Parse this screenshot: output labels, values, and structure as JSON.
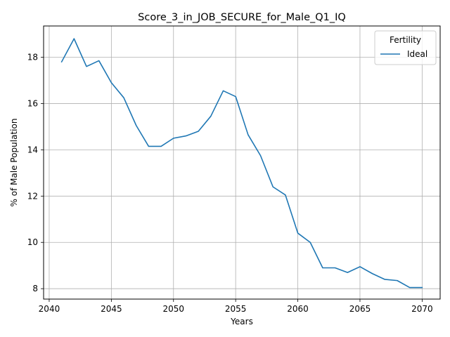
{
  "chart_data": {
    "type": "line",
    "title": "Score_3_in_JOB_SECURE_for_Male_Q1_IQ",
    "xlabel": "Years",
    "ylabel": "% of Male Population",
    "xlim": [
      2039.55,
      2071.45
    ],
    "ylim": [
      7.55,
      19.35
    ],
    "xticks": [
      2040,
      2045,
      2050,
      2055,
      2060,
      2065,
      2070
    ],
    "yticks": [
      8,
      10,
      12,
      14,
      16,
      18
    ],
    "grid": true,
    "legend": {
      "title": "Fertility",
      "placement": "top-right"
    },
    "series": [
      {
        "name": "Ideal",
        "color": "#1f77b4",
        "x": [
          2041,
          2042,
          2043,
          2044,
          2045,
          2046,
          2047,
          2048,
          2049,
          2050,
          2051,
          2052,
          2053,
          2054,
          2055,
          2056,
          2057,
          2058,
          2059,
          2060,
          2061,
          2062,
          2063,
          2064,
          2065,
          2066,
          2067,
          2068,
          2069,
          2070
        ],
        "y": [
          17.8,
          18.8,
          17.6,
          17.85,
          16.9,
          16.25,
          15.05,
          14.15,
          14.15,
          14.5,
          14.6,
          14.8,
          15.45,
          16.55,
          16.3,
          14.65,
          13.75,
          12.4,
          12.05,
          10.4,
          10.0,
          8.9,
          8.9,
          8.7,
          8.95,
          8.65,
          8.4,
          8.35,
          8.05,
          8.05
        ]
      }
    ]
  }
}
